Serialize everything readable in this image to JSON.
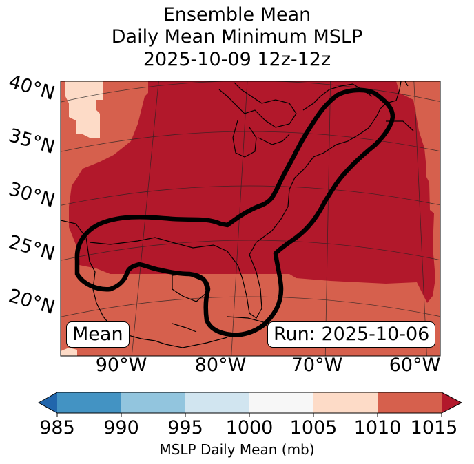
{
  "title": {
    "line1": "Ensemble Mean",
    "line2": "Daily Mean Minimum MSLP",
    "line3": "2025-10-09 12z-12z"
  },
  "map": {
    "lat_labels": [
      "40°N",
      "35°N",
      "30°N",
      "25°N",
      "20°N"
    ],
    "lon_labels": [
      "90°W",
      "80°W",
      "70°W",
      "60°W"
    ],
    "left_box": "Mean",
    "right_box": "Run: 2025-10-06"
  },
  "colorbar": {
    "ticks": [
      "985",
      "990",
      "995",
      "1000",
      "1005",
      "1010",
      "1015"
    ],
    "label": "MSLP Daily Mean (mb)",
    "colors": {
      "under": "#2166ac",
      "c985_990": "#4393c3",
      "c990_995": "#92c5de",
      "c995_1000": "#d1e5f0",
      "c1000_1005": "#f7f7f7",
      "c1005_1010": "#fddbc7",
      "c1010_1015": "#d6604d",
      "over": "#b2182b"
    }
  }
}
